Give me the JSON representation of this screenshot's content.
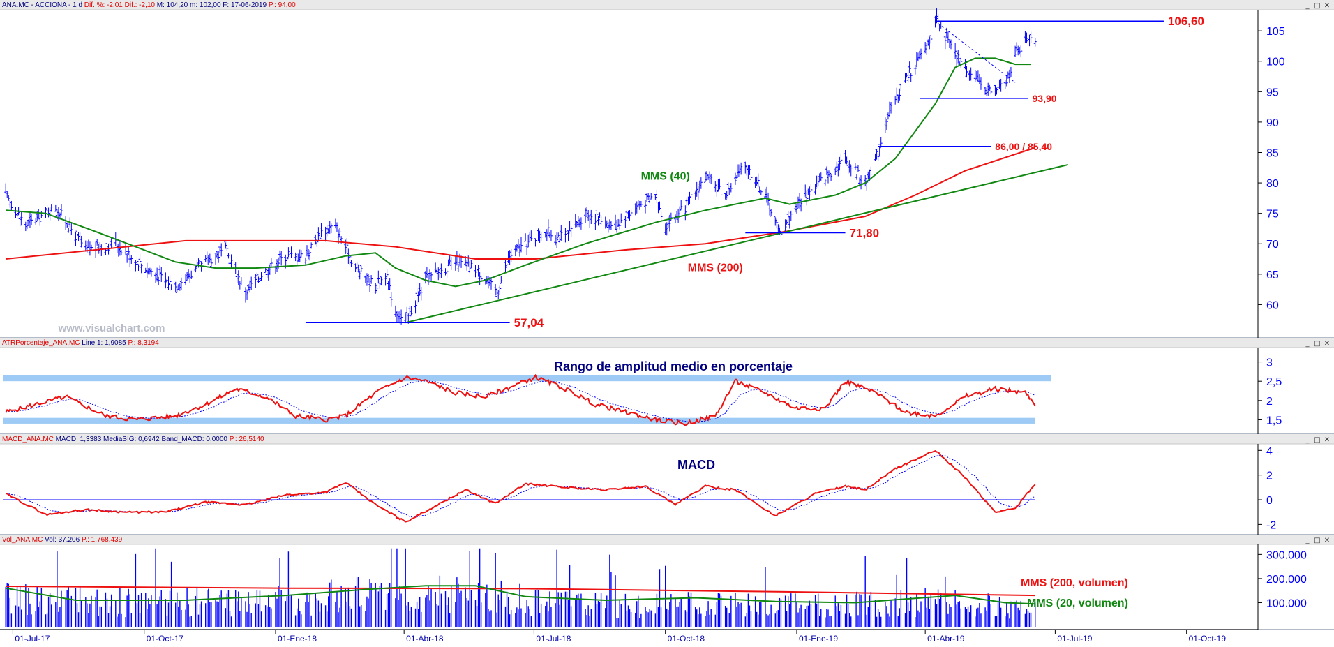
{
  "colors": {
    "axis_text": "#0000ff",
    "price_bars": "#0000ff",
    "mms200": "#ee1111",
    "mms40": "#118811",
    "band": "#9ecbf5",
    "panel_border": "#9aa3b5",
    "header_bg": "#e9e9e9"
  },
  "window_buttons": [
    "_",
    "□",
    "✕"
  ],
  "panels": {
    "price": {
      "header": [
        {
          "text": "ANA.MC - ACCIONA - 1 d",
          "color": "#000080"
        },
        {
          "text": "Dif. %: -2,01",
          "color": "#dd0000"
        },
        {
          "text": "Dif.: -2,10",
          "color": "#dd0000"
        },
        {
          "text": "M: 104,20",
          "color": "#000080"
        },
        {
          "text": "m: 102,00",
          "color": "#000080"
        },
        {
          "text": "F: 17-06-2019",
          "color": "#000080"
        },
        {
          "text": "P.: 94,00",
          "color": "#dd0000"
        }
      ],
      "watermark": "www.visualchart.com"
    },
    "atr": {
      "header": [
        {
          "text": "ATRPorcentaje_ANA.MC",
          "color": "#dd0000"
        },
        {
          "text": "Line 1: 1,9085",
          "color": "#000080"
        },
        {
          "text": "P.: 8,3194",
          "color": "#dd0000"
        }
      ]
    },
    "macd": {
      "header": [
        {
          "text": "MACD_ANA.MC",
          "color": "#dd0000"
        },
        {
          "text": "MACD: 1,3383",
          "color": "#000080"
        },
        {
          "text": "MediaSIG: 0,6942",
          "color": "#000080"
        },
        {
          "text": "Band_MACD: 0,0000",
          "color": "#000080"
        },
        {
          "text": "P.: 26,5140",
          "color": "#dd0000"
        }
      ]
    },
    "vol": {
      "header": [
        {
          "text": "Vol_ANA.MC",
          "color": "#dd0000"
        },
        {
          "text": "Vol: 37.206",
          "color": "#000080"
        },
        {
          "text": "P.: 1.768.439",
          "color": "#dd0000"
        }
      ]
    }
  },
  "chart_data": [
    {
      "type": "ohlc",
      "panel": "price",
      "x_range": [
        "2017-06-22",
        "2019-11-20"
      ],
      "y_range": [
        55,
        108
      ],
      "y_ticks": [
        {
          "v": 60,
          "label": "60"
        },
        {
          "v": 65,
          "label": "65"
        },
        {
          "v": 70,
          "label": "70"
        },
        {
          "v": 75,
          "label": "75"
        },
        {
          "v": 80,
          "label": "80"
        },
        {
          "v": 85,
          "label": "85"
        },
        {
          "v": 90,
          "label": "90"
        },
        {
          "v": 95,
          "label": "95"
        },
        {
          "v": 100,
          "label": "100"
        },
        {
          "v": 105,
          "label": "105"
        }
      ],
      "price_path": [
        [
          "2017-06-26",
          78
        ],
        [
          "2017-07-10",
          73
        ],
        [
          "2017-07-31",
          76
        ],
        [
          "2017-08-21",
          69
        ],
        [
          "2017-09-11",
          70
        ],
        [
          "2017-10-02",
          66
        ],
        [
          "2017-10-23",
          63
        ],
        [
          "2017-11-13",
          67
        ],
        [
          "2017-11-27",
          69
        ],
        [
          "2017-12-11",
          62
        ],
        [
          "2017-12-22",
          65
        ],
        [
          "2018-01-08",
          68
        ],
        [
          "2018-01-22",
          68
        ],
        [
          "2018-02-02",
          72
        ],
        [
          "2018-02-12",
          73
        ],
        [
          "2018-02-26",
          66
        ],
        [
          "2018-03-12",
          63
        ],
        [
          "2018-03-19",
          65
        ],
        [
          "2018-03-26",
          59
        ],
        [
          "2018-04-02",
          57.04
        ],
        [
          "2018-04-16",
          64
        ],
        [
          "2018-05-07",
          67
        ],
        [
          "2018-05-21",
          66
        ],
        [
          "2018-06-05",
          62
        ],
        [
          "2018-06-14",
          68
        ],
        [
          "2018-06-25",
          70
        ],
        [
          "2018-07-09",
          72
        ],
        [
          "2018-07-23",
          71
        ],
        [
          "2018-08-06",
          75
        ],
        [
          "2018-08-27",
          73
        ],
        [
          "2018-09-10",
          76
        ],
        [
          "2018-09-24",
          78
        ],
        [
          "2018-10-01",
          73
        ],
        [
          "2018-10-15",
          76
        ],
        [
          "2018-10-29",
          81
        ],
        [
          "2018-11-12",
          78
        ],
        [
          "2018-11-26",
          83
        ],
        [
          "2018-12-10",
          78
        ],
        [
          "2018-12-20",
          71.8
        ],
        [
          "2019-01-03",
          77
        ],
        [
          "2019-01-21",
          81
        ],
        [
          "2019-02-04",
          84
        ],
        [
          "2019-02-18",
          80
        ],
        [
          "2019-02-27",
          85
        ],
        [
          "2019-03-04",
          90
        ],
        [
          "2019-03-18",
          97
        ],
        [
          "2019-04-01",
          102
        ],
        [
          "2019-04-09",
          106.6
        ],
        [
          "2019-04-22",
          101
        ],
        [
          "2019-05-06",
          97
        ],
        [
          "2019-05-17",
          95
        ],
        [
          "2019-05-27",
          96
        ],
        [
          "2019-06-03",
          101
        ],
        [
          "2019-06-12",
          104
        ]
      ],
      "mms40_path": [
        [
          "2017-06-26",
          75.5
        ],
        [
          "2017-07-24",
          75
        ],
        [
          "2017-08-28",
          72
        ],
        [
          "2017-09-25",
          69.5
        ],
        [
          "2017-10-23",
          67
        ],
        [
          "2017-11-20",
          66
        ],
        [
          "2017-12-18",
          66
        ],
        [
          "2018-01-22",
          66.5
        ],
        [
          "2018-02-19",
          68
        ],
        [
          "2018-03-12",
          68.5
        ],
        [
          "2018-03-26",
          66
        ],
        [
          "2018-04-16",
          64
        ],
        [
          "2018-05-07",
          63
        ],
        [
          "2018-05-28",
          64
        ],
        [
          "2018-06-25",
          66.5
        ],
        [
          "2018-08-06",
          70
        ],
        [
          "2018-09-24",
          73.5
        ],
        [
          "2018-10-29",
          75.5
        ],
        [
          "2018-12-10",
          77.5
        ],
        [
          "2018-12-27",
          76.5
        ],
        [
          "2019-01-28",
          78
        ],
        [
          "2019-02-18",
          80
        ],
        [
          "2019-03-11",
          84
        ],
        [
          "2019-04-08",
          93
        ],
        [
          "2019-04-22",
          99
        ],
        [
          "2019-05-06",
          100.5
        ],
        [
          "2019-05-20",
          100.5
        ],
        [
          "2019-06-03",
          99.5
        ],
        [
          "2019-06-14",
          99.5
        ]
      ],
      "mms200_path": [
        [
          "2017-06-26",
          67.5
        ],
        [
          "2017-08-28",
          69
        ],
        [
          "2017-10-30",
          70.5
        ],
        [
          "2018-02-05",
          70.5
        ],
        [
          "2018-03-26",
          69.5
        ],
        [
          "2018-05-21",
          67.5
        ],
        [
          "2018-07-02",
          67.5
        ],
        [
          "2018-09-03",
          69
        ],
        [
          "2018-10-29",
          70
        ],
        [
          "2018-12-24",
          72
        ],
        [
          "2019-02-18",
          74.5
        ],
        [
          "2019-03-25",
          78
        ],
        [
          "2019-04-29",
          82
        ],
        [
          "2019-06-17",
          85.8
        ]
      ],
      "trendline": [
        [
          "2018-04-02",
          57.04
        ],
        [
          "2019-07-10",
          83
        ]
      ],
      "levels": [
        {
          "value": 106.6,
          "from": "2019-04-08",
          "to": "2019-09-15",
          "label": "106,60",
          "label_color": "#ee1111"
        },
        {
          "value": 93.9,
          "from": "2019-03-28",
          "to": "2019-06-12",
          "label": "93,90",
          "label_color": "#ee1111"
        },
        {
          "value": 86.0,
          "from": "2019-02-27",
          "to": "2019-05-17",
          "label": "86,00 / 85,40",
          "label_color": "#ee1111"
        },
        {
          "value": 71.8,
          "from": "2018-11-26",
          "to": "2019-02-04",
          "label": "71,80",
          "label_color": "#ee1111"
        },
        {
          "value": 57.04,
          "from": "2018-01-22",
          "to": "2018-06-14",
          "label": "57,04",
          "label_color": "#ee1111"
        }
      ],
      "annotations": [
        {
          "text": "MMS (40)",
          "date": "2018-10-01",
          "value": 80.5,
          "color": "#118811"
        },
        {
          "text": "MMS (200)",
          "date": "2018-11-05",
          "value": 65.5,
          "color": "#ee1111"
        }
      ],
      "series": [
        {
          "name": "MMS (40)",
          "color": "#118811"
        },
        {
          "name": "MMS (200)",
          "color": "#ee1111"
        }
      ]
    },
    {
      "type": "line",
      "panel": "atr",
      "title": "Rango de amplitud medio en porcentaje",
      "y_range": [
        1.2,
        3.3
      ],
      "y_ticks": [
        {
          "v": 1.5,
          "label": "1,5"
        },
        {
          "v": 2,
          "label": "2"
        },
        {
          "v": 2.5,
          "label": "2,5"
        },
        {
          "v": 3,
          "label": "3"
        }
      ],
      "bands": [
        {
          "from": 2.5,
          "to": 2.65
        },
        {
          "from": 1.4,
          "to": 1.55
        }
      ],
      "atr_path": [
        [
          "2017-06-26",
          1.7
        ],
        [
          "2017-07-17",
          1.9
        ],
        [
          "2017-08-07",
          2.1
        ],
        [
          "2017-09-04",
          1.6
        ],
        [
          "2017-09-25",
          1.5
        ],
        [
          "2017-10-23",
          1.6
        ],
        [
          "2017-11-13",
          1.9
        ],
        [
          "2017-12-04",
          2.3
        ],
        [
          "2017-12-25",
          2.1
        ],
        [
          "2018-01-15",
          1.6
        ],
        [
          "2018-02-05",
          1.5
        ],
        [
          "2018-02-19",
          1.6
        ],
        [
          "2018-03-12",
          2.2
        ],
        [
          "2018-04-02",
          2.6
        ],
        [
          "2018-04-16",
          2.5
        ],
        [
          "2018-05-07",
          2.2
        ],
        [
          "2018-05-28",
          2.1
        ],
        [
          "2018-06-18",
          2.4
        ],
        [
          "2018-07-02",
          2.6
        ],
        [
          "2018-07-23",
          2.3
        ],
        [
          "2018-08-13",
          1.9
        ],
        [
          "2018-09-03",
          1.7
        ],
        [
          "2018-09-24",
          1.5
        ],
        [
          "2018-10-15",
          1.4
        ],
        [
          "2018-11-05",
          1.6
        ],
        [
          "2018-11-19",
          2.5
        ],
        [
          "2018-12-10",
          2.2
        ],
        [
          "2018-12-31",
          1.8
        ],
        [
          "2019-01-21",
          1.8
        ],
        [
          "2019-02-04",
          2.5
        ],
        [
          "2019-02-25",
          2.2
        ],
        [
          "2019-03-18",
          1.7
        ],
        [
          "2019-04-08",
          1.6
        ],
        [
          "2019-04-29",
          2.1
        ],
        [
          "2019-05-20",
          2.3
        ],
        [
          "2019-06-10",
          2.2
        ],
        [
          "2019-06-17",
          1.9
        ]
      ],
      "series": [
        {
          "name": "Line 1",
          "color": "#ee1111"
        },
        {
          "name": "",
          "color": "#0000ff"
        }
      ]
    },
    {
      "type": "line",
      "panel": "macd",
      "title": "MACD",
      "y_range": [
        -2.6,
        4.3
      ],
      "y_ticks": [
        {
          "v": -2,
          "label": "-2"
        },
        {
          "v": 0,
          "label": "0"
        },
        {
          "v": 2,
          "label": "2"
        },
        {
          "v": 4,
          "label": "4"
        }
      ],
      "zero_line": 0,
      "macd_path": [
        [
          "2017-06-26",
          0.5
        ],
        [
          "2017-07-24",
          -1.2
        ],
        [
          "2017-08-21",
          -0.8
        ],
        [
          "2017-09-18",
          -1.0
        ],
        [
          "2017-10-16",
          -1.0
        ],
        [
          "2017-11-13",
          -0.2
        ],
        [
          "2017-12-11",
          -0.4
        ],
        [
          "2018-01-08",
          0.4
        ],
        [
          "2018-02-05",
          0.6
        ],
        [
          "2018-02-19",
          1.4
        ],
        [
          "2018-03-12",
          -0.4
        ],
        [
          "2018-04-02",
          -1.8
        ],
        [
          "2018-04-23",
          -0.5
        ],
        [
          "2018-05-14",
          0.8
        ],
        [
          "2018-06-04",
          -0.3
        ],
        [
          "2018-06-25",
          1.3
        ],
        [
          "2018-07-23",
          1.0
        ],
        [
          "2018-08-20",
          0.8
        ],
        [
          "2018-09-17",
          1.1
        ],
        [
          "2018-10-08",
          -0.4
        ],
        [
          "2018-10-29",
          1.1
        ],
        [
          "2018-11-19",
          0.8
        ],
        [
          "2018-12-17",
          -1.3
        ],
        [
          "2019-01-14",
          0.5
        ],
        [
          "2019-02-04",
          1.1
        ],
        [
          "2019-02-18",
          0.8
        ],
        [
          "2019-03-11",
          2.5
        ],
        [
          "2019-04-08",
          4.0
        ],
        [
          "2019-04-29",
          1.8
        ],
        [
          "2019-05-20",
          -1.0
        ],
        [
          "2019-06-03",
          -0.7
        ],
        [
          "2019-06-17",
          1.3
        ]
      ],
      "series": [
        {
          "name": "MACD",
          "color": "#ee1111"
        },
        {
          "name": "MediaSIG",
          "color": "#0000ff"
        }
      ]
    },
    {
      "type": "bar",
      "panel": "vol",
      "y_range": [
        0,
        330000
      ],
      "y_ticks": [
        {
          "v": 100000,
          "label": "100.000"
        },
        {
          "v": 200000,
          "label": "200.000"
        },
        {
          "v": 300000,
          "label": "300.000"
        }
      ],
      "vol_level_path": [
        [
          "2017-06-26",
          130000
        ],
        [
          "2017-09-25",
          110000
        ],
        [
          "2018-01-08",
          120000
        ],
        [
          "2018-03-26",
          160000
        ],
        [
          "2018-05-14",
          150000
        ],
        [
          "2018-07-23",
          105000
        ],
        [
          "2018-10-15",
          100000
        ],
        [
          "2019-01-14",
          95000
        ],
        [
          "2019-04-08",
          115000
        ],
        [
          "2019-06-17",
          80000
        ]
      ],
      "mms20_path": [
        [
          "2017-06-26",
          160000
        ],
        [
          "2017-08-14",
          110000
        ],
        [
          "2017-10-30",
          110000
        ],
        [
          "2018-01-08",
          130000
        ],
        [
          "2018-03-05",
          155000
        ],
        [
          "2018-04-16",
          170000
        ],
        [
          "2018-05-21",
          170000
        ],
        [
          "2018-06-25",
          125000
        ],
        [
          "2018-08-20",
          110000
        ],
        [
          "2018-10-22",
          120000
        ],
        [
          "2018-12-17",
          105000
        ],
        [
          "2019-02-11",
          100000
        ],
        [
          "2019-04-22",
          130000
        ],
        [
          "2019-05-27",
          100000
        ],
        [
          "2019-06-17",
          95000
        ]
      ],
      "mms200_path": [
        [
          "2017-06-26",
          168000
        ],
        [
          "2018-01-08",
          160000
        ],
        [
          "2018-06-25",
          158000
        ],
        [
          "2018-12-24",
          145000
        ],
        [
          "2019-06-17",
          130000
        ]
      ],
      "annotations": [
        {
          "text": "MMS (200, volumen)",
          "color": "#ee1111"
        },
        {
          "text": "MMS (20, volumen)",
          "color": "#118811"
        }
      ],
      "series": [
        {
          "name": "MMS (200, volumen)",
          "color": "#ee1111"
        },
        {
          "name": "MMS (20, volumen)",
          "color": "#118811"
        }
      ]
    }
  ],
  "x_axis": {
    "ticks": [
      {
        "date": "2017-07-01",
        "label": "01-Jul-17"
      },
      {
        "date": "2017-10-01",
        "label": "01-Oct-17"
      },
      {
        "date": "2018-01-01",
        "label": "01-Ene-18"
      },
      {
        "date": "2018-04-01",
        "label": "01-Abr-18"
      },
      {
        "date": "2018-07-01",
        "label": "01-Jul-18"
      },
      {
        "date": "2018-10-01",
        "label": "01-Oct-18"
      },
      {
        "date": "2019-01-01",
        "label": "01-Ene-19"
      },
      {
        "date": "2019-04-01",
        "label": "01-Abr-19"
      },
      {
        "date": "2019-07-01",
        "label": "01-Jul-19"
      },
      {
        "date": "2019-10-01",
        "label": "01-Oct-19"
      }
    ]
  }
}
